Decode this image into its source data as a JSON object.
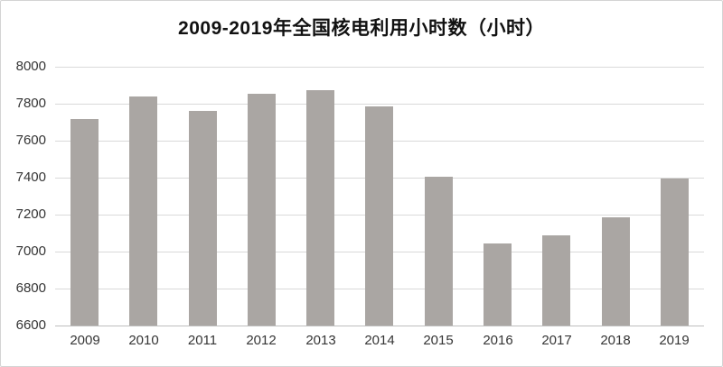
{
  "chart_data": {
    "type": "bar",
    "title": "2009-2019年全国核电利用小时数（小时）",
    "categories": [
      "2009",
      "2010",
      "2011",
      "2012",
      "2013",
      "2014",
      "2015",
      "2016",
      "2017",
      "2018",
      "2019"
    ],
    "values": [
      7716,
      7840,
      7759,
      7855,
      7874,
      7787,
      7403,
      7042,
      7089,
      7184,
      7394
    ],
    "series_name": "全国核电利用小时数",
    "xlabel": "",
    "ylabel": "",
    "ylim": [
      6600,
      8000
    ],
    "yticks": [
      6600,
      6800,
      7000,
      7200,
      7400,
      7600,
      7800,
      8000
    ],
    "grid": true,
    "legend": false
  },
  "colors": {
    "bar": "#aaa6a3",
    "gridline": "#d9d9d9",
    "axis_line": "#bdbdbd",
    "tick_text": "#353535",
    "title_text": "#111111",
    "frame_border": "#d4d4d4",
    "background": "#ffffff"
  }
}
